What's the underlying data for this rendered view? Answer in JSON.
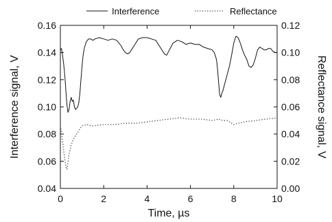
{
  "chart_data": {
    "type": "line",
    "title": "",
    "xlabel": "Time, µs",
    "ylabel_left": "Interference signal, V",
    "ylabel_right": "Reflectance signal, V",
    "xlim": [
      0,
      10
    ],
    "ylim_left": [
      0.04,
      0.16
    ],
    "ylim_right": [
      0.0,
      0.12
    ],
    "xticks": [
      0,
      2,
      4,
      6,
      8,
      10
    ],
    "yticks_left": [
      0.04,
      0.06,
      0.08,
      0.1,
      0.12,
      0.14,
      0.16
    ],
    "yticks_right": [
      0.0,
      0.02,
      0.04,
      0.06,
      0.08,
      0.1,
      0.12
    ],
    "ytick_labels_left": [
      "0.04",
      "0.06",
      "0.08",
      "0.10",
      "0.12",
      "0.14",
      "0.16"
    ],
    "ytick_labels_right": [
      "0.00",
      "0.02",
      "0.04",
      "0.06",
      "0.08",
      "0.10",
      "0.12"
    ],
    "grid": false,
    "legend_position": "top",
    "series": [
      {
        "name": "Interference",
        "style": "solid",
        "axis": "left",
        "color": "#111111",
        "x": [
          0,
          0.05,
          0.1,
          0.15,
          0.2,
          0.25,
          0.3,
          0.35,
          0.4,
          0.45,
          0.5,
          0.55,
          0.6,
          0.65,
          0.7,
          0.75,
          0.8,
          0.85,
          0.9,
          0.95,
          1.0,
          1.05,
          1.1,
          1.2,
          1.3,
          1.4,
          1.5,
          1.6,
          1.8,
          2.0,
          2.2,
          2.4,
          2.6,
          2.8,
          2.9,
          3.0,
          3.1,
          3.2,
          3.4,
          3.6,
          3.8,
          4.0,
          4.2,
          4.4,
          4.6,
          4.8,
          4.9,
          5.0,
          5.2,
          5.4,
          5.6,
          5.8,
          6.0,
          6.2,
          6.4,
          6.6,
          6.8,
          7.0,
          7.1,
          7.2,
          7.25,
          7.3,
          7.35,
          7.4,
          7.45,
          7.5,
          7.55,
          7.6,
          7.65,
          7.7,
          7.8,
          7.9,
          8.0,
          8.1,
          8.2,
          8.3,
          8.4,
          8.5,
          8.6,
          8.7,
          8.8,
          8.9,
          9.0,
          9.1,
          9.2,
          9.3,
          9.4,
          9.5,
          9.6,
          9.7,
          9.8,
          9.9,
          10.0
        ],
        "y": [
          0.142,
          0.143,
          0.138,
          0.132,
          0.124,
          0.113,
          0.102,
          0.096,
          0.098,
          0.104,
          0.107,
          0.104,
          0.105,
          0.1,
          0.098,
          0.099,
          0.1,
          0.103,
          0.11,
          0.12,
          0.13,
          0.138,
          0.143,
          0.148,
          0.15,
          0.15,
          0.149,
          0.15,
          0.151,
          0.15,
          0.149,
          0.15,
          0.149,
          0.145,
          0.142,
          0.14,
          0.139,
          0.14,
          0.145,
          0.15,
          0.151,
          0.151,
          0.15,
          0.149,
          0.144,
          0.139,
          0.138,
          0.141,
          0.147,
          0.149,
          0.148,
          0.146,
          0.147,
          0.146,
          0.146,
          0.144,
          0.143,
          0.142,
          0.14,
          0.135,
          0.128,
          0.118,
          0.109,
          0.107,
          0.11,
          0.112,
          0.115,
          0.118,
          0.121,
          0.124,
          0.13,
          0.138,
          0.147,
          0.152,
          0.151,
          0.147,
          0.142,
          0.138,
          0.135,
          0.13,
          0.129,
          0.131,
          0.136,
          0.142,
          0.144,
          0.143,
          0.142,
          0.142,
          0.143,
          0.143,
          0.141,
          0.14,
          0.14
        ]
      },
      {
        "name": "Reflectance",
        "style": "dotted",
        "axis": "right",
        "color": "#333333",
        "x": [
          0,
          0.05,
          0.1,
          0.15,
          0.2,
          0.25,
          0.3,
          0.35,
          0.4,
          0.5,
          0.6,
          0.7,
          0.8,
          0.9,
          1.0,
          1.2,
          1.5,
          2.0,
          2.5,
          3.0,
          3.5,
          4.0,
          4.5,
          5.0,
          5.5,
          6.0,
          6.5,
          7.0,
          7.3,
          7.5,
          7.7,
          7.9,
          8.0,
          8.2,
          8.5,
          9.0,
          9.5,
          10.0
        ],
        "y": [
          0.046,
          0.041,
          0.035,
          0.028,
          0.022,
          0.016,
          0.014,
          0.019,
          0.025,
          0.032,
          0.036,
          0.039,
          0.041,
          0.044,
          0.046,
          0.047,
          0.046,
          0.047,
          0.047,
          0.048,
          0.048,
          0.049,
          0.05,
          0.051,
          0.052,
          0.051,
          0.051,
          0.05,
          0.051,
          0.05,
          0.05,
          0.048,
          0.047,
          0.048,
          0.049,
          0.05,
          0.051,
          0.052
        ]
      }
    ]
  }
}
